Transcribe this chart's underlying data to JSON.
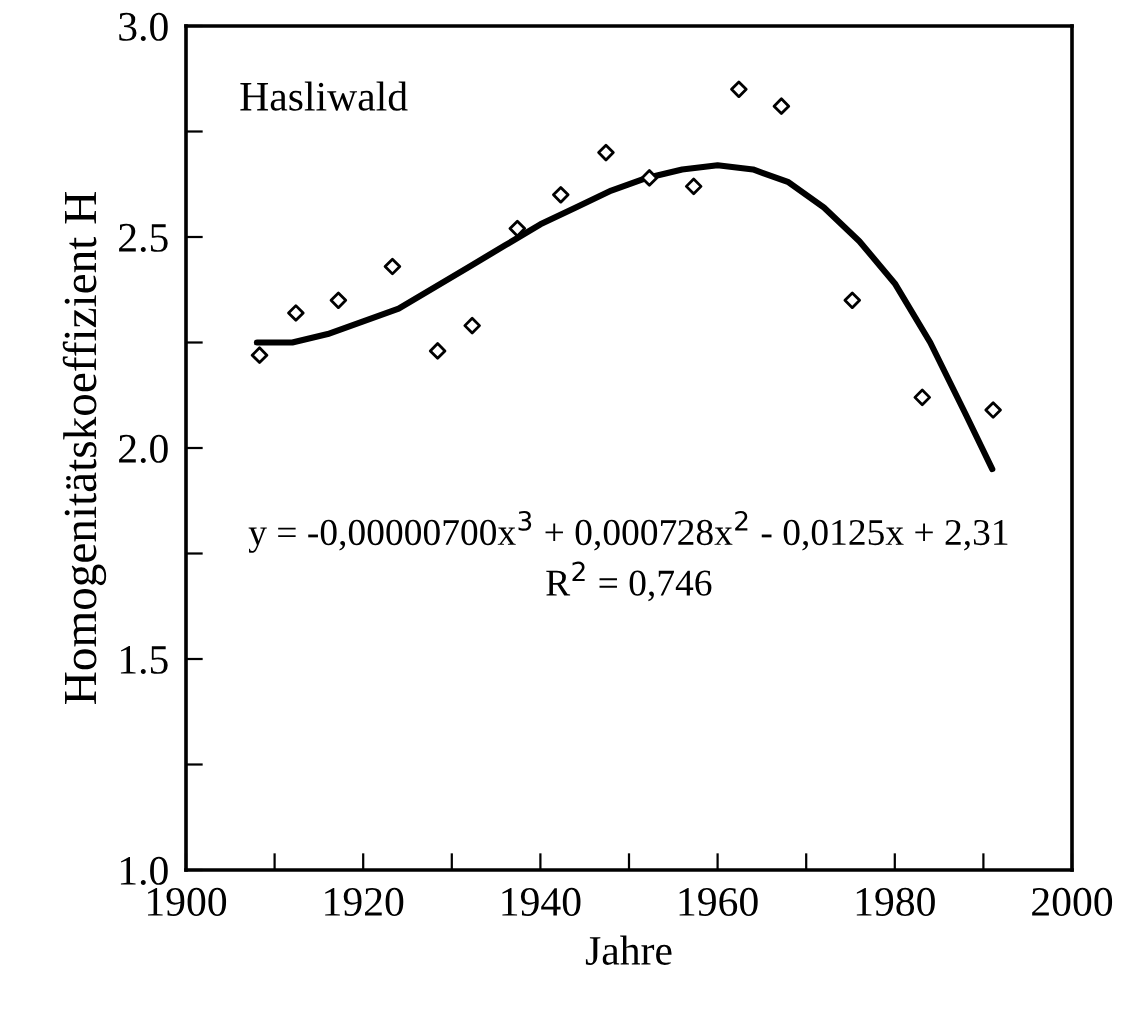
{
  "chart_data": {
    "type": "scatter",
    "xlabel": "Jahre",
    "ylabel": "Homogenitätskoeffizient H",
    "annotations": [
      "Hasliwald",
      "y = -0,00000700x$^{3}$ + 0,000728x$^{2}$ - 0,0125x + 2,31",
      "R$^{2}$ = 0,746"
    ],
    "series": [
      {
        "color": "#000000",
        "marker": "diamond",
        "x": [
          1908.3,
          1912.4,
          1917.2,
          1923.3,
          1928.4,
          1932.3,
          1937.4,
          1942.3,
          1947.4,
          1952.3,
          1957.3,
          1962.4,
          1967.2,
          1975.2,
          1983.1,
          1991.1
        ],
        "values": [
          2.22,
          2.32,
          2.35,
          2.43,
          2.23,
          2.29,
          2.52,
          2.6,
          2.7,
          2.64,
          2.62,
          2.85,
          2.81,
          2.35,
          2.12,
          2.09
        ]
      },
      {
        "type": "line",
        "color": "#000000",
        "marker": "none",
        "line_style": "solid",
        "x": [
          1908,
          1912,
          1916,
          1920,
          1924,
          1928,
          1932,
          1936,
          1940,
          1944,
          1948,
          1952,
          1956,
          1960,
          1964,
          1968,
          1972,
          1976,
          1980,
          1984,
          1988,
          1991
        ],
        "values": [
          2.25,
          2.25,
          2.27,
          2.3,
          2.33,
          2.38,
          2.43,
          2.48,
          2.53,
          2.57,
          2.61,
          2.64,
          2.66,
          2.67,
          2.66,
          2.63,
          2.57,
          2.49,
          2.39,
          2.25,
          2.08,
          1.95
        ]
      }
    ],
    "xlim": [
      1900,
      2000
    ],
    "xticks": [
      1900,
      {
        "value": 1910,
        "label": null
      },
      1920,
      {
        "value": 1930,
        "label": null
      },
      1940,
      {
        "value": 1950,
        "label": null
      },
      1960,
      {
        "value": 1970,
        "label": null
      },
      1980,
      {
        "value": 1990,
        "label": null
      },
      2000
    ],
    "ylim": [
      1.0,
      3.0
    ],
    "yticks": [
      {
        "value": 1.0,
        "label": "1.0"
      },
      {
        "value": 1.25,
        "label": null
      },
      {
        "value": 1.5,
        "label": "1.5"
      },
      {
        "value": 1.75,
        "label": null
      },
      {
        "value": 2.0,
        "label": "2.0"
      },
      {
        "value": 2.25,
        "label": null
      },
      {
        "value": 2.5,
        "label": "2.5"
      },
      {
        "value": 2.75,
        "label": null
      },
      {
        "value": 3.0,
        "label": "3.0"
      }
    ],
    "grid": false,
    "legend": false
  }
}
